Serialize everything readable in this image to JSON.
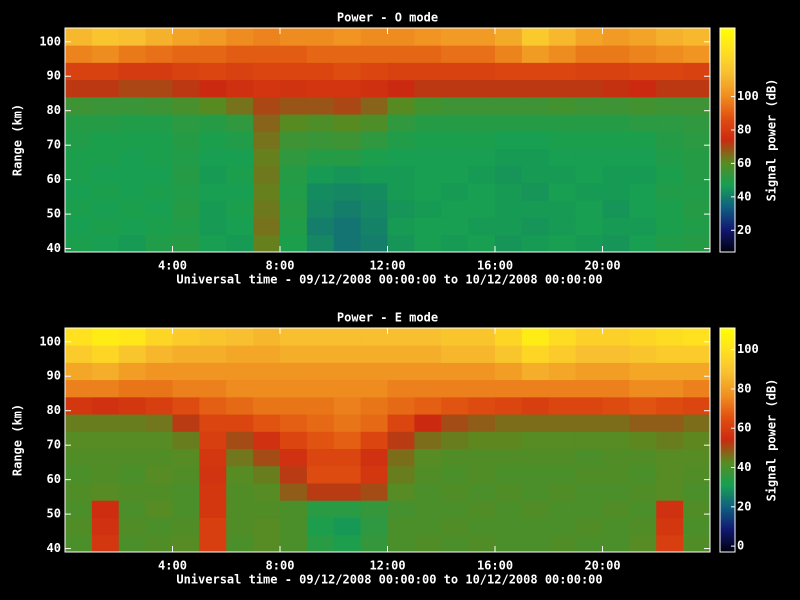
{
  "chart_data": [
    {
      "type": "heatmap",
      "title": "Power - O mode",
      "xlabel": "Universal time - 09/12/2008 00:00:00 to 10/12/2008 00:00:00",
      "ylabel": "Range (km)",
      "colorbar_label": "Signal power (dB)",
      "xbins": [
        0,
        1,
        2,
        3,
        4,
        5,
        6,
        7,
        8,
        9,
        10,
        11,
        12,
        13,
        14,
        15,
        16,
        17,
        18,
        19,
        20,
        21,
        22,
        23,
        24
      ],
      "ybins": [
        39,
        44,
        49,
        54,
        59,
        64,
        69,
        74,
        79,
        84,
        89,
        94,
        99,
        104
      ],
      "xlim": [
        0,
        24
      ],
      "ylim": [
        39,
        104
      ],
      "clim": [
        7,
        141
      ],
      "xticks": [
        {
          "value": 4,
          "label": "4:00"
        },
        {
          "value": 8,
          "label": "8:00"
        },
        {
          "value": 12,
          "label": "12:00"
        },
        {
          "value": 16,
          "label": "16:00"
        },
        {
          "value": 20,
          "label": "20:00"
        }
      ],
      "yticks": [
        40,
        50,
        60,
        70,
        80,
        90,
        100
      ],
      "cticks": [
        20,
        40,
        60,
        80,
        100
      ],
      "colormap": [
        "#000010",
        "#101870",
        "#106080",
        "#18a050",
        "#5a8a20",
        "#cc2a10",
        "#e05010",
        "#f09020",
        "#f8c030",
        "#ffe020",
        "#ffff00"
      ],
      "values": [
        [
          48,
          47,
          46,
          49,
          50,
          47,
          46,
          62,
          48,
          42,
          38,
          40,
          45,
          47,
          46,
          47,
          45,
          46,
          47,
          46,
          45,
          47,
          49,
          50
        ],
        [
          47,
          48,
          47,
          48,
          49,
          46,
          47,
          64,
          49,
          40,
          38,
          41,
          46,
          47,
          47,
          46,
          46,
          45,
          46,
          47,
          46,
          46,
          48,
          49
        ],
        [
          48,
          47,
          48,
          47,
          50,
          46,
          48,
          63,
          50,
          42,
          40,
          42,
          45,
          46,
          47,
          47,
          46,
          46,
          46,
          47,
          45,
          47,
          48,
          50
        ],
        [
          47,
          48,
          47,
          48,
          49,
          47,
          47,
          62,
          49,
          43,
          42,
          43,
          46,
          47,
          46,
          47,
          46,
          45,
          47,
          46,
          46,
          47,
          49,
          49
        ],
        [
          48,
          47,
          47,
          47,
          50,
          46,
          48,
          63,
          50,
          46,
          45,
          46,
          46,
          47,
          47,
          46,
          45,
          46,
          46,
          47,
          46,
          46,
          48,
          50
        ],
        [
          48,
          48,
          47,
          48,
          49,
          47,
          47,
          62,
          52,
          50,
          50,
          48,
          47,
          47,
          47,
          47,
          46,
          46,
          47,
          47,
          47,
          47,
          49,
          50
        ],
        [
          49,
          48,
          48,
          48,
          50,
          48,
          49,
          64,
          55,
          54,
          55,
          52,
          49,
          48,
          48,
          48,
          47,
          47,
          48,
          48,
          48,
          48,
          50,
          51
        ],
        [
          50,
          50,
          49,
          49,
          51,
          50,
          52,
          66,
          60,
          58,
          60,
          58,
          52,
          50,
          50,
          50,
          50,
          50,
          50,
          50,
          50,
          51,
          51,
          52
        ],
        [
          55,
          54,
          54,
          55,
          57,
          60,
          64,
          70,
          68,
          68,
          70,
          66,
          60,
          56,
          55,
          55,
          55,
          55,
          56,
          55,
          55,
          56,
          55,
          55
        ],
        [
          72,
          72,
          70,
          70,
          72,
          74,
          76,
          78,
          77,
          78,
          78,
          76,
          74,
          72,
          72,
          72,
          72,
          72,
          72,
          72,
          73,
          74,
          72,
          72
        ],
        [
          82,
          82,
          80,
          80,
          82,
          84,
          82,
          84,
          84,
          84,
          86,
          84,
          82,
          82,
          82,
          82,
          84,
          84,
          84,
          82,
          82,
          84,
          84,
          82
        ],
        [
          98,
          100,
          96,
          94,
          92,
          92,
          90,
          90,
          90,
          92,
          92,
          92,
          92,
          92,
          94,
          94,
          98,
          104,
          100,
          96,
          96,
          98,
          100,
          102
        ],
        [
          112,
          116,
          114,
          110,
          106,
          104,
          100,
          98,
          100,
          100,
          102,
          100,
          100,
          102,
          104,
          104,
          108,
          118,
          112,
          106,
          104,
          106,
          110,
          112
        ]
      ]
    },
    {
      "type": "heatmap",
      "title": "Power - E mode",
      "xlabel": "Universal time - 09/12/2008 00:00:00 to 10/12/2008 00:00:00",
      "ylabel": "Range (km)",
      "colorbar_label": "Signal power (dB)",
      "xbins": [
        0,
        1,
        2,
        3,
        4,
        5,
        6,
        7,
        8,
        9,
        10,
        11,
        12,
        13,
        14,
        15,
        16,
        17,
        18,
        19,
        20,
        21,
        22,
        23,
        24
      ],
      "ybins": [
        39,
        44,
        49,
        54,
        59,
        64,
        69,
        74,
        79,
        84,
        89,
        94,
        99,
        104
      ],
      "xlim": [
        0,
        24
      ],
      "ylim": [
        39,
        104
      ],
      "clim": [
        -3,
        111
      ],
      "xticks": [
        {
          "value": 4,
          "label": "4:00"
        },
        {
          "value": 8,
          "label": "8:00"
        },
        {
          "value": 12,
          "label": "12:00"
        },
        {
          "value": 16,
          "label": "16:00"
        },
        {
          "value": 20,
          "label": "20:00"
        }
      ],
      "yticks": [
        40,
        50,
        60,
        70,
        80,
        90,
        100
      ],
      "cticks": [
        0,
        20,
        40,
        60,
        80,
        100
      ],
      "colormap": [
        "#000010",
        "#101870",
        "#106080",
        "#18a050",
        "#5a8a20",
        "#cc2a10",
        "#e05010",
        "#f09020",
        "#f8c030",
        "#ffe020",
        "#ffff00"
      ],
      "values": [
        [
          40,
          58,
          40,
          41,
          42,
          60,
          40,
          42,
          40,
          34,
          32,
          36,
          40,
          41,
          40,
          41,
          40,
          40,
          41,
          40,
          40,
          42,
          60,
          41
        ],
        [
          41,
          56,
          41,
          40,
          41,
          60,
          41,
          42,
          40,
          32,
          30,
          35,
          40,
          40,
          41,
          40,
          40,
          40,
          40,
          41,
          40,
          41,
          58,
          40
        ],
        [
          40,
          55,
          40,
          42,
          40,
          58,
          41,
          41,
          40,
          34,
          34,
          36,
          39,
          40,
          40,
          41,
          40,
          41,
          40,
          40,
          41,
          40,
          56,
          41
        ],
        [
          41,
          42,
          41,
          41,
          40,
          58,
          41,
          42,
          48,
          52,
          52,
          50,
          42,
          40,
          41,
          40,
          41,
          40,
          41,
          40,
          40,
          41,
          42,
          40
        ],
        [
          40,
          41,
          40,
          42,
          41,
          57,
          42,
          44,
          52,
          64,
          64,
          58,
          44,
          41,
          40,
          41,
          40,
          40,
          40,
          41,
          41,
          40,
          42,
          41
        ],
        [
          41,
          41,
          41,
          41,
          42,
          58,
          45,
          50,
          56,
          62,
          62,
          56,
          46,
          42,
          41,
          41,
          41,
          41,
          41,
          40,
          41,
          41,
          42,
          42
        ],
        [
          42,
          42,
          42,
          42,
          44,
          60,
          50,
          56,
          62,
          66,
          68,
          62,
          52,
          46,
          44,
          43,
          43,
          42,
          42,
          42,
          42,
          43,
          44,
          43
        ],
        [
          44,
          44,
          44,
          45,
          52,
          62,
          62,
          66,
          68,
          70,
          72,
          70,
          62,
          54,
          50,
          48,
          46,
          46,
          46,
          46,
          46,
          48,
          48,
          46
        ],
        [
          58,
          56,
          58,
          60,
          64,
          68,
          70,
          72,
          72,
          72,
          74,
          72,
          70,
          68,
          66,
          64,
          62,
          60,
          62,
          62,
          64,
          66,
          64,
          62
        ],
        [
          74,
          74,
          72,
          72,
          74,
          74,
          76,
          76,
          76,
          76,
          76,
          76,
          74,
          74,
          74,
          74,
          74,
          74,
          74,
          74,
          74,
          76,
          76,
          74
        ],
        [
          82,
          84,
          80,
          78,
          78,
          78,
          78,
          78,
          78,
          78,
          78,
          78,
          78,
          78,
          78,
          78,
          80,
          84,
          82,
          80,
          80,
          82,
          82,
          82
        ],
        [
          92,
          96,
          90,
          86,
          84,
          84,
          82,
          82,
          84,
          84,
          84,
          84,
          84,
          84,
          86,
          86,
          90,
          96,
          92,
          88,
          88,
          90,
          92,
          92
        ],
        [
          100,
          104,
          102,
          96,
          92,
          90,
          88,
          86,
          88,
          88,
          88,
          88,
          88,
          88,
          90,
          90,
          96,
          104,
          98,
          94,
          94,
          96,
          98,
          100
        ]
      ]
    }
  ]
}
